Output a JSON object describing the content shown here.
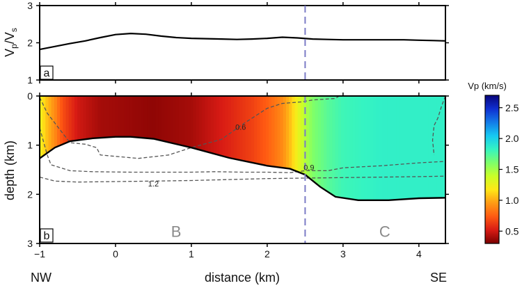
{
  "chart_data": [
    {
      "panel": "a",
      "type": "line",
      "ylabel": "Vp/Vs",
      "ylabel_main": "V",
      "ylabel_sub_p": "p",
      "ylabel_sub_s": "s",
      "xlim": [
        -1,
        4.35
      ],
      "ylim": [
        1,
        3
      ],
      "yticks": [
        "1",
        "2",
        "3"
      ],
      "series": [
        {
          "x": [
            -1.0,
            -0.8,
            -0.6,
            -0.4,
            -0.2,
            0.0,
            0.2,
            0.4,
            0.6,
            0.8,
            1.0,
            1.2,
            1.4,
            1.6,
            1.8,
            2.0,
            2.2,
            2.4,
            2.6,
            2.8,
            3.0,
            3.2,
            3.4,
            3.6,
            3.8,
            4.0,
            4.2,
            4.35
          ],
          "y": [
            1.82,
            1.9,
            1.98,
            2.05,
            2.14,
            2.22,
            2.25,
            2.23,
            2.18,
            2.14,
            2.12,
            2.11,
            2.1,
            2.09,
            2.1,
            2.12,
            2.15,
            2.13,
            2.1,
            2.09,
            2.08,
            2.08,
            2.08,
            2.08,
            2.08,
            2.07,
            2.06,
            2.05
          ]
        }
      ],
      "vline_x": 2.5
    },
    {
      "panel": "b",
      "type": "heatmap",
      "xlabel": "distance (km)",
      "ylabel": "depth (km)",
      "xlim": [
        -1,
        4.35
      ],
      "ylim": [
        3,
        0
      ],
      "xticks": [
        "-1",
        "0",
        "1",
        "2",
        "3",
        "4"
      ],
      "yticks": [
        "0",
        "1",
        "2",
        "3"
      ],
      "colorbar": {
        "label": "Vp (km/s)",
        "ticks": [
          "0.5",
          "1.0",
          "1.5",
          "2.0",
          "2.5"
        ],
        "range": [
          0.3,
          2.7
        ]
      },
      "surface_x_vp": {
        "x": [
          -1.0,
          -0.9,
          -0.8,
          -0.7,
          -0.5,
          -0.2,
          0.5,
          1.0,
          1.5,
          1.8,
          2.0,
          2.2,
          2.3,
          2.4,
          2.5,
          2.6,
          2.8,
          3.0,
          3.5,
          4.0,
          4.35
        ],
        "vp": [
          1.25,
          1.05,
          0.9,
          0.7,
          0.5,
          0.4,
          0.35,
          0.4,
          0.55,
          0.65,
          0.75,
          0.9,
          1.05,
          1.25,
          1.45,
          1.6,
          1.72,
          1.8,
          1.85,
          1.85,
          1.85
        ]
      },
      "basement": {
        "x": [
          -1.0,
          -0.8,
          -0.6,
          -0.3,
          0.0,
          0.2,
          0.5,
          1.0,
          1.5,
          2.0,
          2.3,
          2.5,
          2.7,
          2.9,
          3.2,
          3.6,
          4.0,
          4.35
        ],
        "depth": [
          1.27,
          1.05,
          0.92,
          0.86,
          0.83,
          0.83,
          0.87,
          1.05,
          1.26,
          1.42,
          1.48,
          1.6,
          1.85,
          2.05,
          2.12,
          2.12,
          2.08,
          2.07
        ]
      },
      "contours": [
        {
          "label": "0.6",
          "x": [
            -1.0,
            -0.9,
            -0.75,
            -0.6,
            -0.4,
            -0.25,
            -0.2,
            0.3,
            0.7,
            1.0,
            1.4,
            1.7,
            2.0,
            2.2,
            2.45,
            2.6,
            2.9,
            2.95,
            3.5,
            4.0,
            4.25,
            4.3
          ],
          "depth": [
            0.03,
            0.35,
            0.65,
            0.95,
            0.98,
            1.05,
            1.2,
            1.27,
            1.2,
            1.05,
            0.88,
            0.55,
            0.25,
            0.15,
            0.12,
            0.08,
            0.05,
            0.0,
            0.0,
            0.0,
            0.0,
            0.0
          ]
        },
        {
          "label": "0.9",
          "x": [
            -1.0,
            -0.9,
            -0.85,
            -0.6,
            -0.3,
            0.2,
            0.6,
            1.0,
            1.3,
            1.7,
            2.0,
            2.3,
            2.5,
            2.8,
            3.0,
            3.5,
            4.0,
            4.35
          ],
          "depth": [
            0.65,
            1.2,
            1.4,
            1.52,
            1.54,
            1.55,
            1.55,
            1.55,
            1.54,
            1.55,
            1.55,
            1.56,
            1.52,
            1.52,
            1.46,
            1.42,
            1.36,
            1.33
          ]
        },
        {
          "label": "1.2",
          "x": [
            -1.0,
            -0.8,
            -0.5,
            0.0,
            0.5,
            1.0,
            1.5,
            2.0,
            2.5,
            3.0,
            3.5,
            4.0,
            4.35
          ],
          "depth": [
            1.65,
            1.73,
            1.75,
            1.74,
            1.73,
            1.72,
            1.7,
            1.68,
            1.67,
            1.66,
            1.65,
            1.64,
            1.63
          ]
        },
        {
          "label": "",
          "x": [
            4.35,
            4.3,
            4.25,
            4.2,
            4.18,
            4.2
          ],
          "depth": [
            0.0,
            0.2,
            0.45,
            0.6,
            0.9,
            1.2
          ]
        }
      ],
      "contour_labels": [
        {
          "text": "0.6",
          "x": 1.65,
          "depth": 0.63
        },
        {
          "text": "0.9",
          "x": 2.55,
          "depth": 1.45
        },
        {
          "text": "1.2",
          "x": 0.5,
          "depth": 1.78
        }
      ],
      "vline_x": 2.5,
      "regions": [
        {
          "text": "B",
          "x": 0.8,
          "depth": 2.75
        },
        {
          "text": "C",
          "x": 3.55,
          "depth": 2.75
        }
      ],
      "annotations": {
        "left": "NW",
        "right": "SE"
      }
    }
  ],
  "panel_letters": {
    "a": "a",
    "b": "b"
  },
  "colors": {
    "colormap": [
      "#7a0000",
      "#d81b14",
      "#ff5a12",
      "#ff9b15",
      "#ffe817",
      "#c9ff28",
      "#7dff6b",
      "#35f4c2",
      "#16c8f2",
      "#147be8",
      "#0f2fd0",
      "#08057a"
    ],
    "dashed_vline": "#7b7bc6",
    "contour": "#555555",
    "line": "#000000"
  }
}
